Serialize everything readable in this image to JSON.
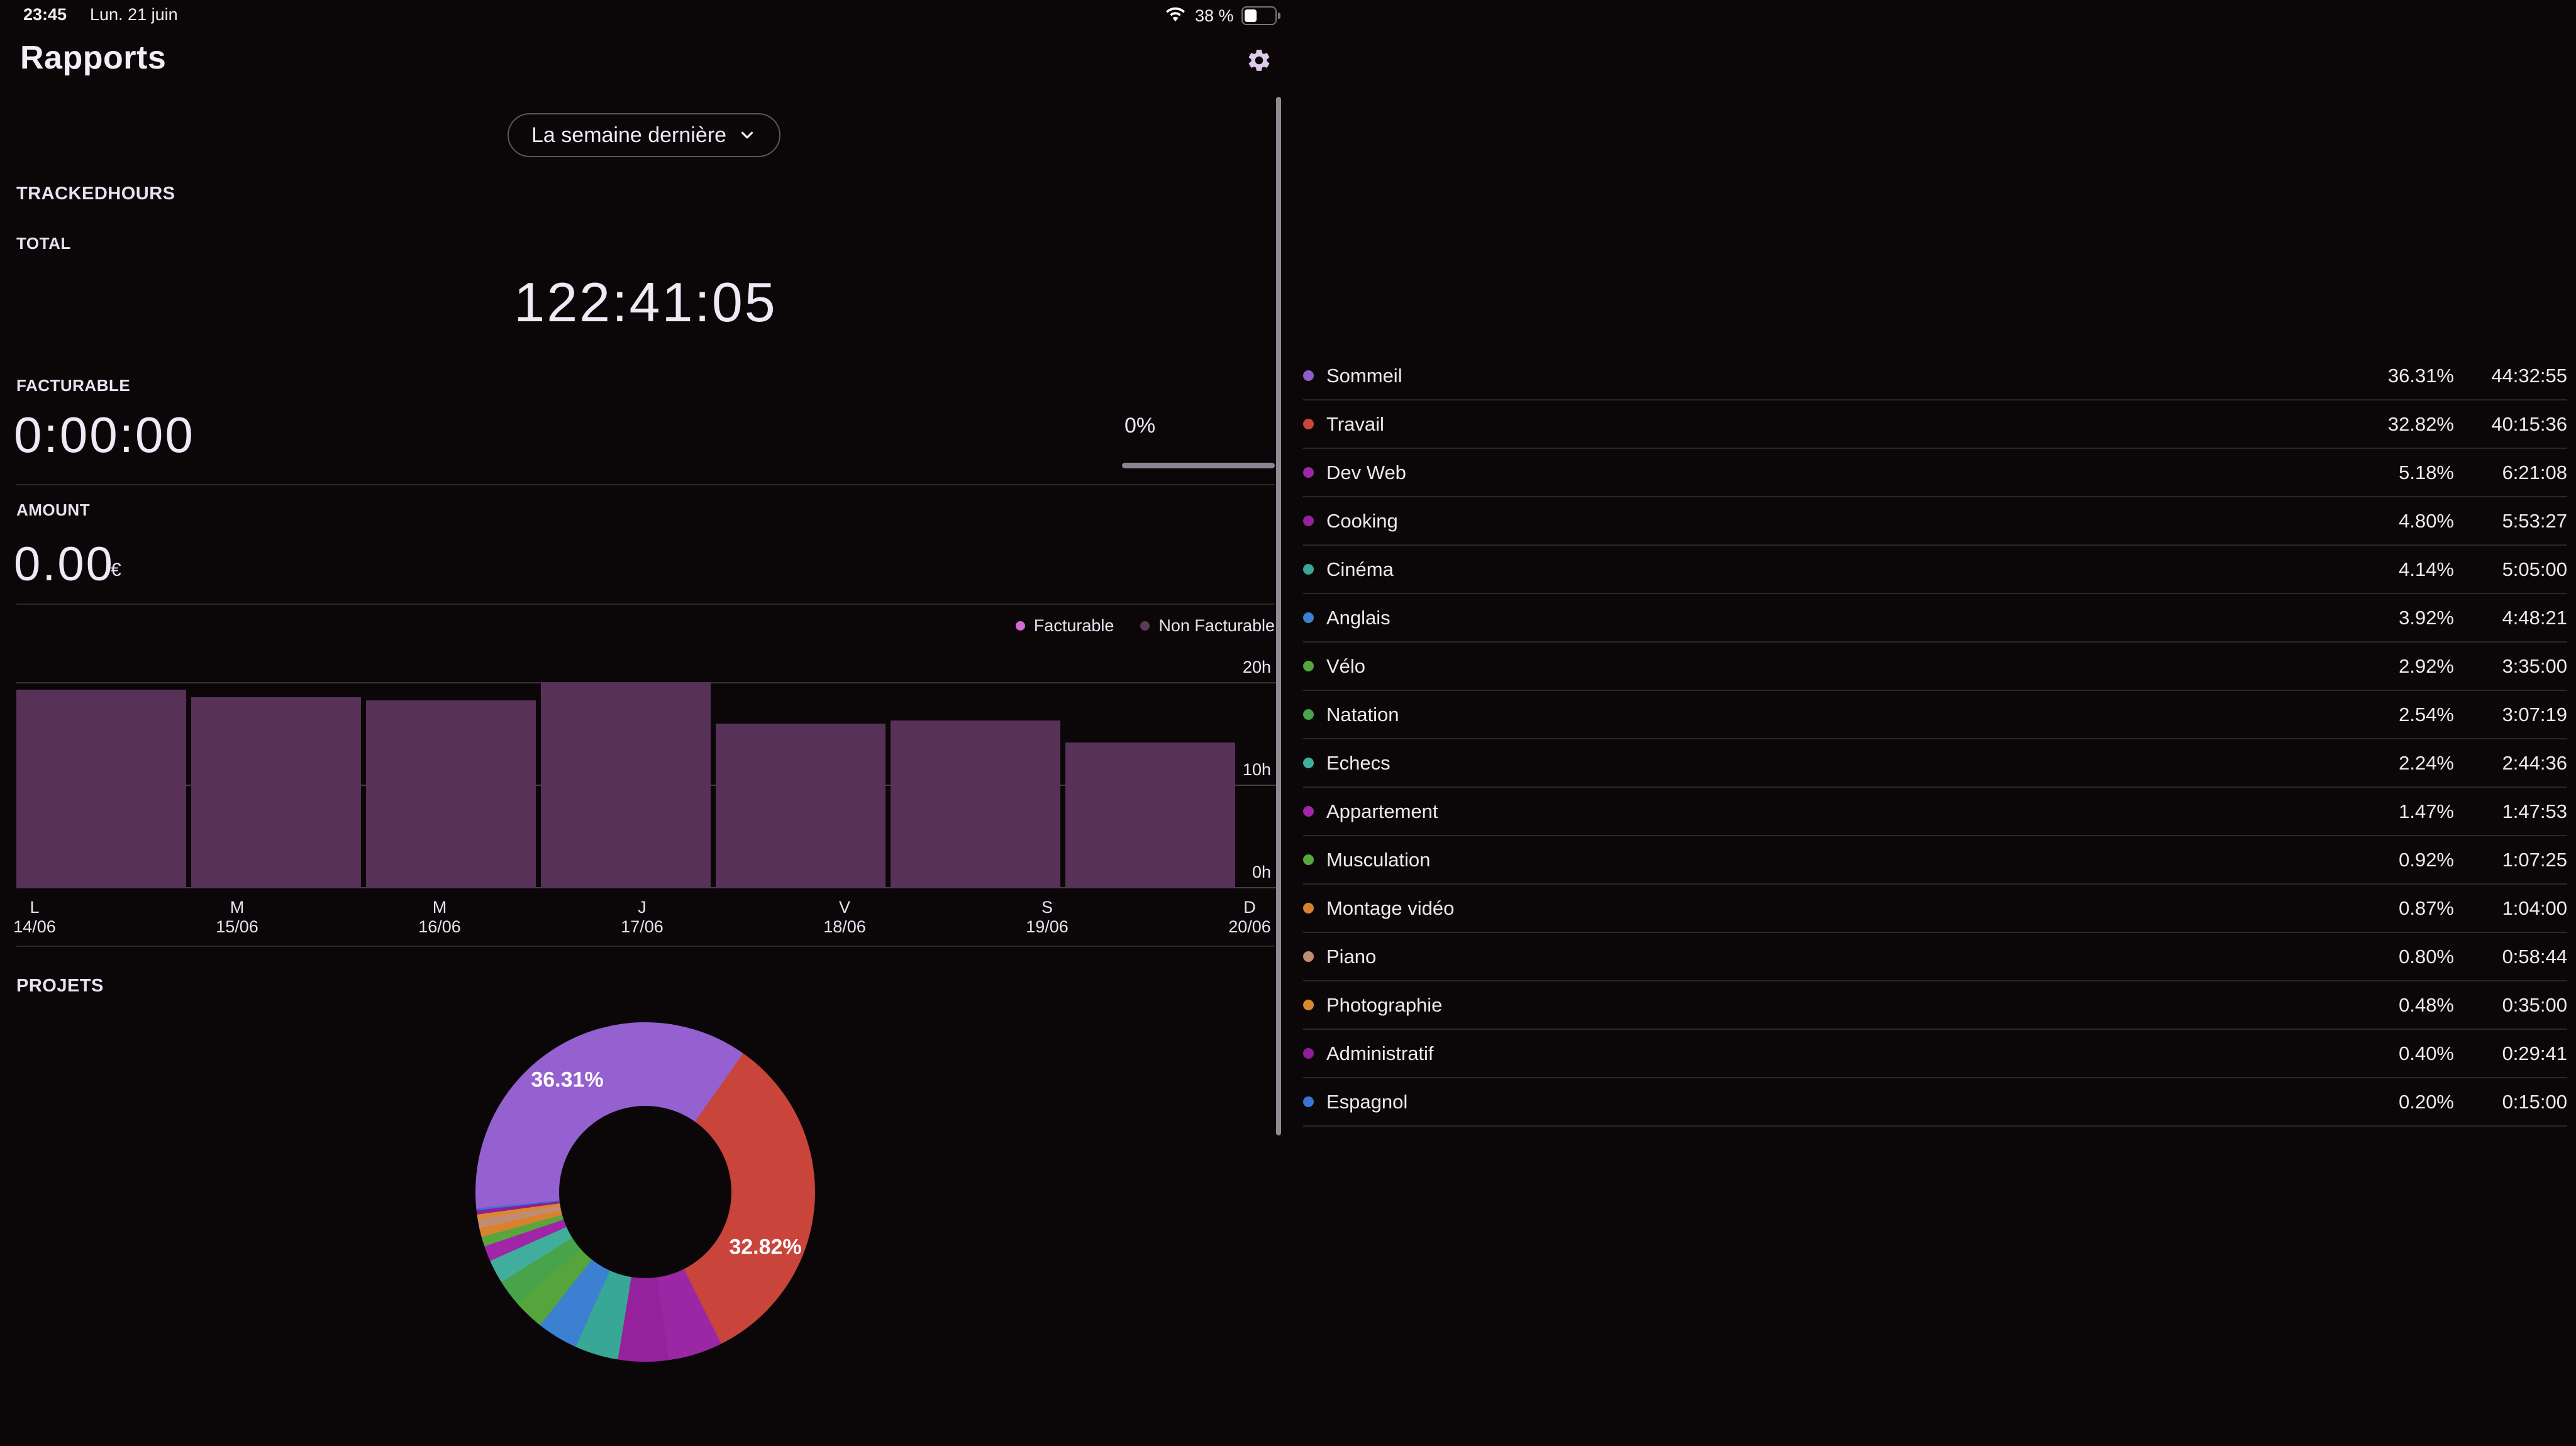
{
  "status_bar": {
    "time": "23:45",
    "date": "Lun. 21 juin",
    "battery_percent": "38 %",
    "battery_level": 0.38,
    "wifi_icon": "wifi",
    "battery_icon": "battery"
  },
  "header": {
    "title": "Rapports",
    "settings_icon": "gear"
  },
  "filter": {
    "selected": "La semaine dernière",
    "chevron_icon": "chevron-down"
  },
  "tracked": {
    "section": "TRACKEDHOURS",
    "total_label": "TOTAL",
    "total_value": "122:41:05",
    "billable_label": "FACTURABLE",
    "billable_value": "0:00:00",
    "billable_percent": "0%",
    "amount_label": "AMOUNT",
    "amount_value": "0.00",
    "currency": "€"
  },
  "projects_section": {
    "title": "PROJETS"
  },
  "colors": {
    "background": "#0b0709",
    "bar": "#583158",
    "facturable_dot": "#d36bd0",
    "progress_track": "#8c8393",
    "pane_divider": "#8e8b92"
  },
  "chart_data": [
    {
      "type": "bar",
      "categories": [
        {
          "day": "L",
          "date": "14/06"
        },
        {
          "day": "M",
          "date": "15/06"
        },
        {
          "day": "M",
          "date": "16/06"
        },
        {
          "day": "J",
          "date": "17/06"
        },
        {
          "day": "V",
          "date": "18/06"
        },
        {
          "day": "S",
          "date": "19/06"
        },
        {
          "day": "D",
          "date": "20/06"
        }
      ],
      "series": [
        {
          "name": "Non Facturable",
          "color": "#583158",
          "values": [
            19.3,
            18.6,
            18.3,
            20.05,
            16.0,
            16.3,
            14.2
          ]
        }
      ],
      "legend": [
        {
          "label": "Facturable",
          "color": "#d36bd0"
        },
        {
          "label": "Non Facturable",
          "color": "#5a3a57"
        }
      ],
      "yticks": [
        "0h",
        "10h",
        "20h"
      ],
      "ylim": [
        0,
        20.5
      ],
      "unit": "hours",
      "grid": true,
      "legend_position": "top-right"
    },
    {
      "type": "donut",
      "labels": [
        "Sommeil",
        "Travail",
        "Dev Web",
        "Cooking",
        "Cinéma",
        "Anglais",
        "Vélo",
        "Natation",
        "Echecs",
        "Appartement",
        "Musculation",
        "Montage vidéo",
        "Piano",
        "Photographie",
        "Administratif",
        "Espagnol"
      ],
      "values": [
        36.31,
        32.82,
        5.18,
        4.8,
        4.14,
        3.92,
        2.92,
        2.54,
        2.24,
        1.47,
        0.92,
        0.87,
        0.8,
        0.48,
        0.4,
        0.2
      ],
      "colors": [
        "#9560cf",
        "#c9443a",
        "#9c27a4",
        "#96219d",
        "#38a795",
        "#3b80d1",
        "#55a43c",
        "#47a44a",
        "#41ae9d",
        "#a125a8",
        "#58a73c",
        "#d9822d",
        "#c28c74",
        "#d9882e",
        "#8e1f98",
        "#3b74d6"
      ],
      "callouts": [
        {
          "text": "36.31%"
        },
        {
          "text": "32.82%"
        }
      ],
      "start_angle_deg": 264.5,
      "inner_radius_ratio": 0.51
    }
  ],
  "projects": [
    {
      "name": "Sommeil",
      "percent": "36.31%",
      "time": "44:32:55",
      "color": "#8f5ccb"
    },
    {
      "name": "Travail",
      "percent": "32.82%",
      "time": "40:15:36",
      "color": "#c9443a"
    },
    {
      "name": "Dev Web",
      "percent": "5.18%",
      "time": "6:21:08",
      "color": "#9c27a4"
    },
    {
      "name": "Cooking",
      "percent": "4.80%",
      "time": "5:53:27",
      "color": "#96219d"
    },
    {
      "name": "Cinéma",
      "percent": "4.14%",
      "time": "5:05:00",
      "color": "#38a795"
    },
    {
      "name": "Anglais",
      "percent": "3.92%",
      "time": "4:48:21",
      "color": "#3b80d1"
    },
    {
      "name": "Vélo",
      "percent": "2.92%",
      "time": "3:35:00",
      "color": "#55a43c"
    },
    {
      "name": "Natation",
      "percent": "2.54%",
      "time": "3:07:19",
      "color": "#47a44a"
    },
    {
      "name": "Echecs",
      "percent": "2.24%",
      "time": "2:44:36",
      "color": "#41ae9d"
    },
    {
      "name": "Appartement",
      "percent": "1.47%",
      "time": "1:47:53",
      "color": "#a125a8"
    },
    {
      "name": "Musculation",
      "percent": "0.92%",
      "time": "1:07:25",
      "color": "#58a73c"
    },
    {
      "name": "Montage vidéo",
      "percent": "0.87%",
      "time": "1:04:00",
      "color": "#d9822d"
    },
    {
      "name": "Piano",
      "percent": "0.80%",
      "time": "0:58:44",
      "color": "#c28c74"
    },
    {
      "name": "Photographie",
      "percent": "0.48%",
      "time": "0:35:00",
      "color": "#d9882e"
    },
    {
      "name": "Administratif",
      "percent": "0.40%",
      "time": "0:29:41",
      "color": "#8e1f98"
    },
    {
      "name": "Espagnol",
      "percent": "0.20%",
      "time": "0:15:00",
      "color": "#3b74d6"
    }
  ]
}
